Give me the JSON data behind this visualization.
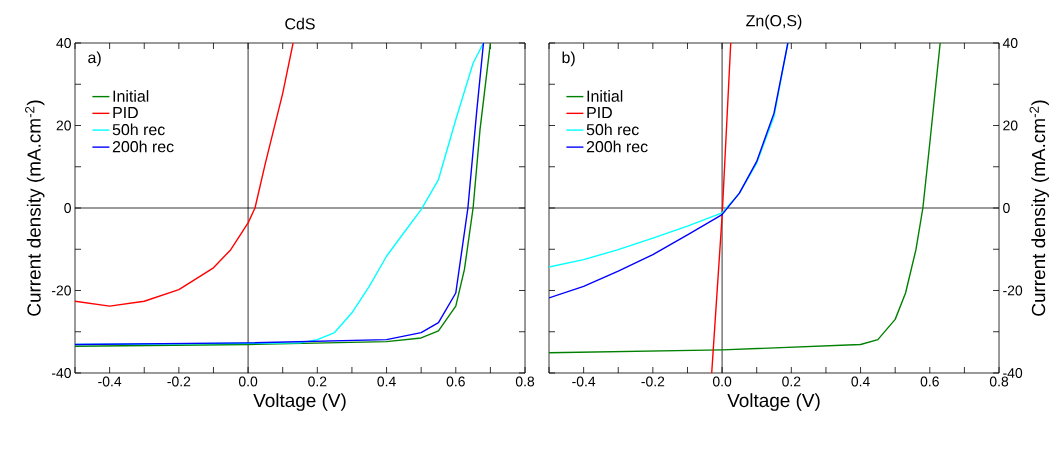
{
  "chart_data": [
    {
      "type": "line",
      "title": "CdS",
      "xlabel": "Voltage (V)",
      "ylabel": "Current density (mA.cm$^{-2}$)",
      "annotations": [
        "a)"
      ],
      "xlim": [
        -0.5,
        0.8
      ],
      "xticks": [
        {
          "value": -0.5,
          "label": null
        },
        -0.4,
        {
          "value": -0.3,
          "label": null
        },
        -0.2,
        {
          "value": -0.1,
          "label": null
        },
        {
          "value": 0,
          "label": "0.0"
        },
        {
          "value": 0.1,
          "label": null
        },
        0.2,
        {
          "value": 0.3,
          "label": null
        },
        0.4,
        {
          "value": 0.5,
          "label": null
        },
        0.6,
        {
          "value": 0.7,
          "label": null
        },
        0.8
      ],
      "ylim": [
        -40,
        40
      ],
      "yticks": [
        -40,
        {
          "value": -30,
          "label": null
        },
        -20,
        {
          "value": -10,
          "label": null
        },
        0,
        {
          "value": 10,
          "label": null
        },
        20,
        {
          "value": 30,
          "label": null
        },
        40
      ],
      "legend": "top left",
      "line_style": "solid",
      "marker": "none",
      "grid": false,
      "ref_lines": [
        {
          "axis": "x",
          "value": 0,
          "color": "#000000"
        },
        {
          "axis": "y",
          "value": 0,
          "color": "#000000"
        }
      ],
      "series": [
        {
          "name": "Initial",
          "color": "#008000",
          "x": [
            -0.5,
            0,
            0.4,
            0.5,
            0.55,
            0.6,
            0.625,
            0.65,
            0.67,
            0.7
          ],
          "values": [
            -33.5,
            -33.1,
            -32.4,
            -31.5,
            -29.8,
            -23.8,
            -14.9,
            0,
            19,
            40
          ]
        },
        {
          "name": "PID",
          "color": "#ff0000",
          "x": [
            -0.5,
            -0.4,
            -0.3,
            -0.2,
            -0.1,
            -0.05,
            0,
            0.02,
            0.05,
            0.1,
            0.13
          ],
          "values": [
            -22.6,
            -23.8,
            -22.6,
            -19.8,
            -14.5,
            -10.1,
            -3.6,
            0,
            10.9,
            27.8,
            40
          ]
        },
        {
          "name": "50h rec",
          "color": "#00ffff",
          "x": [
            -0.5,
            0.15,
            0.2,
            0.25,
            0.3,
            0.35,
            0.4,
            0.45,
            0.5,
            0.55,
            0.6,
            0.65,
            0.68
          ],
          "values": [
            -33.1,
            -32.7,
            -31.9,
            -30.2,
            -25.4,
            -19,
            -11.7,
            -6,
            -0.4,
            6.9,
            21.4,
            35.1,
            40
          ]
        },
        {
          "name": "200h rec",
          "color": "#0000ff",
          "x": [
            -0.5,
            0,
            0.4,
            0.5,
            0.55,
            0.6,
            0.635,
            0.66,
            0.68
          ],
          "values": [
            -33.1,
            -32.7,
            -31.9,
            -30.2,
            -27.8,
            -20.6,
            0,
            23,
            40
          ]
        }
      ]
    },
    {
      "type": "line",
      "title": "Zn(O,S)",
      "xlabel": "Voltage (V)",
      "y2label": "Current density (mA.cm$^{-2}$)",
      "annotations": [
        "b)"
      ],
      "xlim": [
        -0.5,
        0.8
      ],
      "xticks": [
        {
          "value": -0.5,
          "label": null
        },
        -0.4,
        {
          "value": -0.3,
          "label": null
        },
        -0.2,
        {
          "value": -0.1,
          "label": null
        },
        {
          "value": 0,
          "label": "0.0"
        },
        {
          "value": 0.1,
          "label": null
        },
        0.2,
        {
          "value": 0.3,
          "label": null
        },
        0.4,
        {
          "value": 0.5,
          "label": null
        },
        0.6,
        {
          "value": 0.7,
          "label": null
        },
        0.8
      ],
      "y2lim": [
        -40,
        40
      ],
      "y2ticks": [
        -40,
        {
          "value": -30,
          "label": null
        },
        -20,
        {
          "value": -10,
          "label": null
        },
        0,
        {
          "value": 10,
          "label": null
        },
        20,
        {
          "value": 30,
          "label": null
        },
        40
      ],
      "legend": "top left",
      "line_style": "solid",
      "marker": "none",
      "grid": false,
      "ref_lines": [
        {
          "axis": "x",
          "value": 0,
          "color": "#000000"
        },
        {
          "axis": "y2",
          "value": 0,
          "color": "#000000"
        }
      ],
      "series": [
        {
          "name": "Initial",
          "color": "#008000",
          "axis": "y2",
          "x": [
            -0.5,
            0,
            0.4,
            0.45,
            0.5,
            0.53,
            0.56,
            0.58,
            0.6,
            0.63
          ],
          "values": [
            -35.1,
            -34.4,
            -33.1,
            -31.9,
            -27,
            -20.6,
            -10.1,
            0,
            15.7,
            40
          ]
        },
        {
          "name": "PID",
          "color": "#ff0000",
          "axis": "y2",
          "x": [
            -0.03,
            0,
            0.025
          ],
          "values": [
            -40,
            -2,
            40
          ]
        },
        {
          "name": "50h rec",
          "color": "#00ffff",
          "axis": "y2",
          "x": [
            -0.5,
            -0.4,
            -0.3,
            -0.2,
            -0.1,
            0,
            0.05,
            0.1,
            0.15,
            0.19
          ],
          "values": [
            -14.3,
            -12.5,
            -10.1,
            -7.3,
            -4.4,
            -1.2,
            3.6,
            10.9,
            22.2,
            40
          ]
        },
        {
          "name": "200h rec",
          "color": "#0000ff",
          "axis": "y2",
          "x": [
            -0.5,
            -0.4,
            -0.3,
            -0.2,
            -0.1,
            0,
            0.05,
            0.1,
            0.15,
            0.19
          ],
          "values": [
            -21.8,
            -19,
            -15.3,
            -11.3,
            -6.5,
            -1.6,
            3.6,
            11.3,
            23,
            40
          ]
        }
      ]
    }
  ]
}
